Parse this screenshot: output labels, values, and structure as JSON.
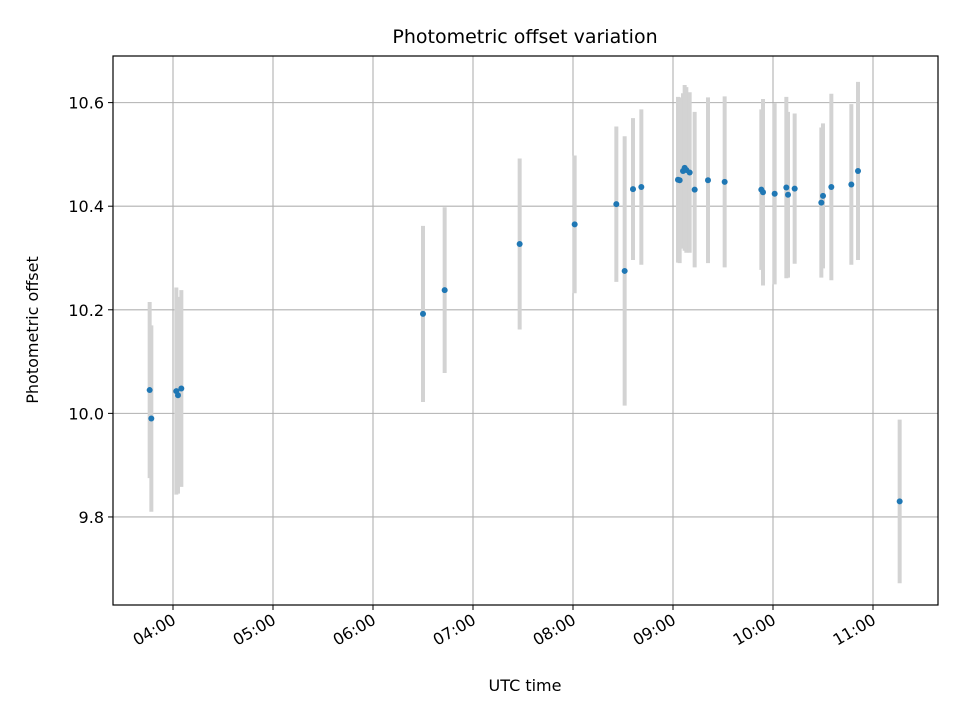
{
  "chart_data": {
    "type": "scatter",
    "title": "Photometric offset variation",
    "xlabel": "UTC time",
    "ylabel": "Photometric offset",
    "x_unit": "UTC hh:mm",
    "xlim": [
      "03:24",
      "11:39"
    ],
    "ylim": [
      9.63,
      10.69
    ],
    "grid": true,
    "x_ticks": [
      "04:00",
      "05:00",
      "06:00",
      "07:00",
      "08:00",
      "09:00",
      "10:00",
      "11:00"
    ],
    "y_ticks": [
      9.8,
      10.0,
      10.2,
      10.4,
      10.6
    ],
    "y_tick_labels": [
      "9.8",
      "10.0",
      "10.2",
      "10.4",
      "10.6"
    ],
    "marker_color": "#1f77b4",
    "errorbar_color": "#d3d3d3",
    "points": [
      {
        "x": "03:46",
        "y": 10.045,
        "err": 0.17
      },
      {
        "x": "03:47",
        "y": 9.99,
        "err": 0.18
      },
      {
        "x": "04:02",
        "y": 10.043,
        "err": 0.2
      },
      {
        "x": "04:03",
        "y": 10.035,
        "err": 0.19
      },
      {
        "x": "04:05",
        "y": 10.048,
        "err": 0.19
      },
      {
        "x": "06:30",
        "y": 10.192,
        "err": 0.17
      },
      {
        "x": "06:43",
        "y": 10.238,
        "err": 0.16
      },
      {
        "x": "07:28",
        "y": 10.327,
        "err": 0.165
      },
      {
        "x": "08:01",
        "y": 10.365,
        "err": 0.133
      },
      {
        "x": "08:26",
        "y": 10.404,
        "err": 0.15
      },
      {
        "x": "08:31",
        "y": 10.275,
        "err": 0.26
      },
      {
        "x": "08:36",
        "y": 10.433,
        "err": 0.137
      },
      {
        "x": "08:41",
        "y": 10.437,
        "err": 0.15
      },
      {
        "x": "09:03",
        "y": 10.451,
        "err": 0.16
      },
      {
        "x": "09:04",
        "y": 10.45,
        "err": 0.16
      },
      {
        "x": "09:06",
        "y": 10.468,
        "err": 0.15
      },
      {
        "x": "09:07",
        "y": 10.474,
        "err": 0.16
      },
      {
        "x": "09:08",
        "y": 10.47,
        "err": 0.16
      },
      {
        "x": "09:10",
        "y": 10.465,
        "err": 0.155
      },
      {
        "x": "09:13",
        "y": 10.432,
        "err": 0.15
      },
      {
        "x": "09:21",
        "y": 10.45,
        "err": 0.16
      },
      {
        "x": "09:31",
        "y": 10.447,
        "err": 0.165
      },
      {
        "x": "09:53",
        "y": 10.432,
        "err": 0.155
      },
      {
        "x": "09:54",
        "y": 10.427,
        "err": 0.18
      },
      {
        "x": "10:01",
        "y": 10.424,
        "err": 0.175
      },
      {
        "x": "10:08",
        "y": 10.436,
        "err": 0.175
      },
      {
        "x": "10:09",
        "y": 10.422,
        "err": 0.16
      },
      {
        "x": "10:13",
        "y": 10.434,
        "err": 0.145
      },
      {
        "x": "10:29",
        "y": 10.407,
        "err": 0.145
      },
      {
        "x": "10:30",
        "y": 10.42,
        "err": 0.14
      },
      {
        "x": "10:35",
        "y": 10.437,
        "err": 0.18
      },
      {
        "x": "10:47",
        "y": 10.442,
        "err": 0.155
      },
      {
        "x": "10:51",
        "y": 10.468,
        "err": 0.172
      },
      {
        "x": "11:16",
        "y": 9.83,
        "err": 0.158
      }
    ]
  }
}
